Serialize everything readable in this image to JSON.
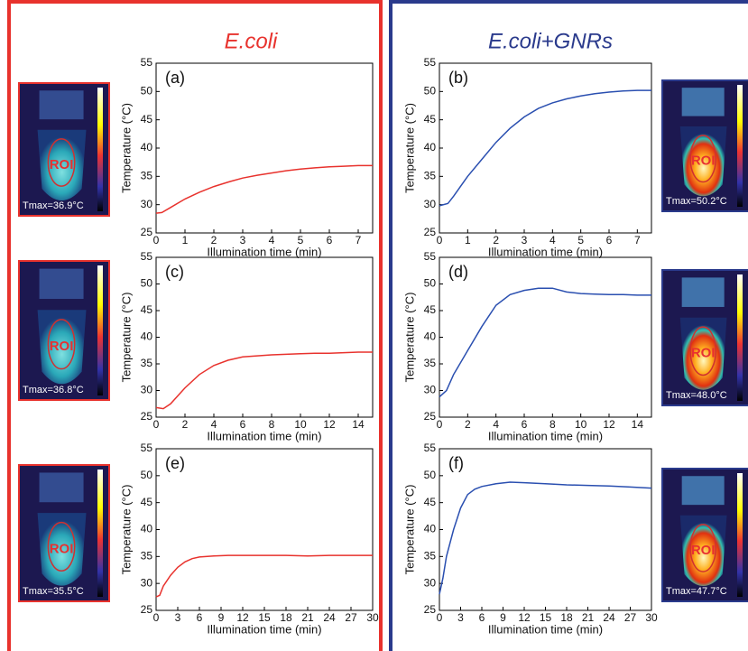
{
  "headers": [
    "E.coli",
    "E.coli+GNRs"
  ],
  "images": [
    {
      "roi": "ROI",
      "tmax": "Tmax=36.9°C"
    },
    {
      "roi": "ROI",
      "tmax": "Tmax=50.2°C"
    },
    {
      "roi": "ROI",
      "tmax": "Tmax=36.8°C"
    },
    {
      "roi": "ROI",
      "tmax": "Tmax=48.0°C"
    },
    {
      "roi": "ROI",
      "tmax": "Tmax=35.5°C"
    },
    {
      "roi": "ROI",
      "tmax": "Tmax=47.7°C"
    }
  ],
  "chart_data": [
    {
      "type": "line",
      "label": "(a)",
      "xlabel": "Illumination time (min)",
      "ylabel": "Temperature (°C)",
      "x": [
        0,
        0.2,
        0.5,
        1,
        1.5,
        2,
        2.5,
        3,
        3.5,
        4,
        4.5,
        5,
        5.5,
        6,
        6.5,
        7,
        7.5
      ],
      "series": [
        {
          "color": "#e8322d",
          "values": [
            28.5,
            28.6,
            29.5,
            31,
            32.2,
            33.2,
            34,
            34.7,
            35.2,
            35.6,
            36,
            36.3,
            36.5,
            36.7,
            36.8,
            36.9,
            36.9
          ]
        }
      ],
      "xlim": [
        0,
        7.5
      ],
      "ylim": [
        25,
        55
      ],
      "xticks": [
        0,
        1,
        2,
        3,
        4,
        5,
        6,
        7
      ],
      "yticks": [
        25,
        30,
        35,
        40,
        45,
        50,
        55
      ]
    },
    {
      "type": "line",
      "label": "(b)",
      "xlabel": "Illumination time (min)",
      "ylabel": "Temperature (°C)",
      "x": [
        0,
        0.3,
        0.5,
        1,
        1.5,
        2,
        2.5,
        3,
        3.5,
        4,
        4.5,
        5,
        5.5,
        6,
        6.5,
        7,
        7.5
      ],
      "series": [
        {
          "color": "#2a4fb0",
          "values": [
            29.8,
            30.2,
            31.5,
            35,
            38,
            41,
            43.5,
            45.5,
            47,
            48,
            48.7,
            49.2,
            49.6,
            49.9,
            50.1,
            50.2,
            50.2
          ]
        }
      ],
      "xlim": [
        0,
        7.5
      ],
      "ylim": [
        25,
        55
      ],
      "xticks": [
        0,
        1,
        2,
        3,
        4,
        5,
        6,
        7
      ],
      "yticks": [
        25,
        30,
        35,
        40,
        45,
        50,
        55
      ]
    },
    {
      "type": "line",
      "label": "(c)",
      "xlabel": "Illumination time (min)",
      "ylabel": "Temperature (°C)",
      "x": [
        0,
        0.5,
        1,
        2,
        3,
        4,
        5,
        6,
        7,
        8,
        9,
        10,
        11,
        12,
        13,
        14,
        15
      ],
      "series": [
        {
          "color": "#e8322d",
          "values": [
            26.8,
            26.6,
            27.5,
            30.5,
            33,
            34.7,
            35.7,
            36.3,
            36.5,
            36.7,
            36.8,
            36.9,
            37,
            37,
            37.1,
            37.2,
            37.2
          ]
        }
      ],
      "xlim": [
        0,
        15
      ],
      "ylim": [
        25,
        55
      ],
      "xticks": [
        0,
        2,
        4,
        6,
        8,
        10,
        12,
        14
      ],
      "yticks": [
        25,
        30,
        35,
        40,
        45,
        50,
        55
      ]
    },
    {
      "type": "line",
      "label": "(d)",
      "xlabel": "Illumination time (min)",
      "ylabel": "Temperature (°C)",
      "x": [
        0,
        0.5,
        1,
        2,
        3,
        4,
        5,
        6,
        7,
        8,
        9,
        10,
        11,
        12,
        13,
        14,
        15
      ],
      "series": [
        {
          "color": "#2a4fb0",
          "values": [
            28.8,
            30,
            33,
            37.5,
            42,
            46,
            48,
            48.8,
            49.2,
            49.2,
            48.5,
            48.2,
            48.1,
            48,
            48,
            47.9,
            47.9
          ]
        }
      ],
      "xlim": [
        0,
        15
      ],
      "ylim": [
        25,
        55
      ],
      "xticks": [
        0,
        2,
        4,
        6,
        8,
        10,
        12,
        14
      ],
      "yticks": [
        25,
        30,
        35,
        40,
        45,
        50,
        55
      ]
    },
    {
      "type": "line",
      "label": "(e)",
      "xlabel": "Illumination time (min)",
      "ylabel": "Temperature (°C)",
      "x": [
        0,
        0.5,
        1,
        2,
        3,
        4,
        5,
        6,
        8,
        10,
        12,
        15,
        18,
        21,
        24,
        27,
        30
      ],
      "series": [
        {
          "color": "#e8322d",
          "values": [
            27.5,
            27.8,
            29.5,
            31.5,
            33,
            34,
            34.6,
            34.9,
            35.1,
            35.2,
            35.2,
            35.2,
            35.2,
            35.1,
            35.2,
            35.2,
            35.2
          ]
        }
      ],
      "xlim": [
        0,
        30
      ],
      "ylim": [
        25,
        55
      ],
      "xticks": [
        0,
        3,
        6,
        9,
        12,
        15,
        18,
        21,
        24,
        27,
        30
      ],
      "yticks": [
        25,
        30,
        35,
        40,
        45,
        50,
        55
      ]
    },
    {
      "type": "line",
      "label": "(f)",
      "xlabel": "Illumination time (min)",
      "ylabel": "Temperature (°C)",
      "x": [
        0,
        0.5,
        1,
        2,
        3,
        4,
        5,
        6,
        8,
        10,
        12,
        15,
        18,
        21,
        24,
        27,
        30
      ],
      "series": [
        {
          "color": "#2a4fb0",
          "values": [
            28,
            31,
            35,
            40,
            44,
            46.5,
            47.5,
            48,
            48.5,
            48.8,
            48.7,
            48.5,
            48.3,
            48.2,
            48.1,
            47.9,
            47.7
          ]
        }
      ],
      "xlim": [
        0,
        30
      ],
      "ylim": [
        25,
        55
      ],
      "xticks": [
        0,
        3,
        6,
        9,
        12,
        15,
        18,
        21,
        24,
        27,
        30
      ],
      "yticks": [
        25,
        30,
        35,
        40,
        45,
        50,
        55
      ]
    }
  ]
}
